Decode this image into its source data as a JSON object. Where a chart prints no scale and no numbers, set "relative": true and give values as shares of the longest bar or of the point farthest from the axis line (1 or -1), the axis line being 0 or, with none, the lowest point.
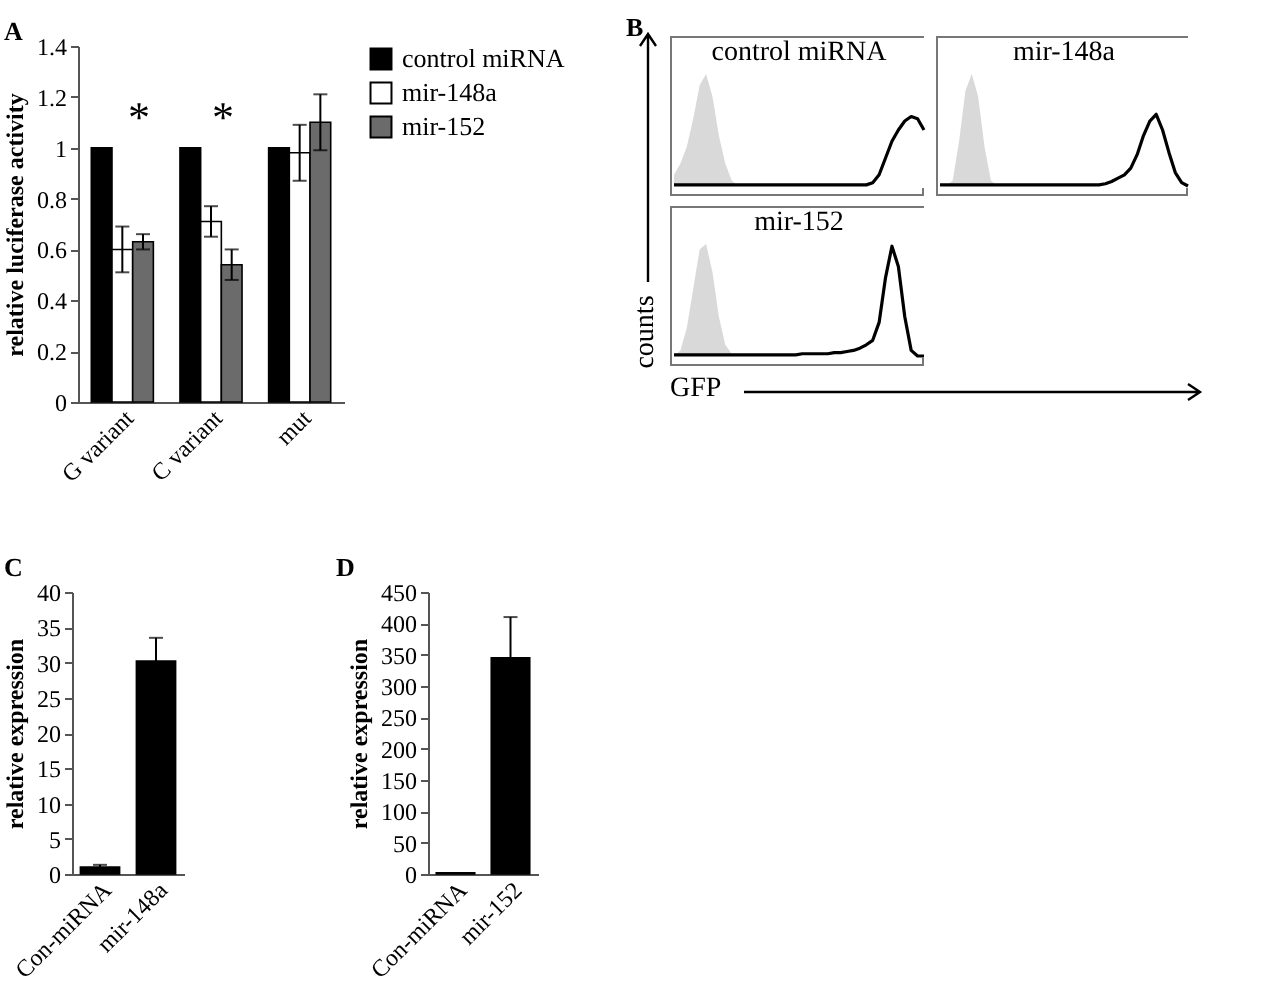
{
  "chart_data": [
    {
      "type": "bar",
      "annotations": [
        "A",
        "*",
        "*"
      ],
      "ylabel": "relative luciferase activity",
      "categories": [
        "G variant",
        "C variant",
        "mut"
      ],
      "series": [
        {
          "name": "control miRNA",
          "color": "#000000",
          "values": [
            1,
            1,
            1
          ]
        },
        {
          "name": "mir-148a",
          "color": "#ffffff",
          "values": [
            0.6,
            0.71,
            0.98
          ],
          "errors": [
            0.09,
            0.06,
            0.11
          ]
        },
        {
          "name": "mir-152",
          "color": "#6b6b6b",
          "values": [
            0.63,
            0.54,
            1.1
          ],
          "errors": [
            0.03,
            0.06,
            0.11
          ]
        }
      ],
      "ylim": [
        0,
        1.4
      ],
      "yticks": [
        0,
        0.2,
        0.4,
        0.6,
        0.8,
        1,
        1.2,
        1.4
      ],
      "legend": "right"
    },
    {
      "type": "line",
      "title": "control miRNA",
      "annotations": [
        "B"
      ],
      "relative": true,
      "categories": [
        null,
        null,
        null,
        null,
        null,
        null,
        null,
        null,
        null,
        null,
        null,
        null,
        null,
        null,
        null,
        null,
        null,
        null,
        null,
        null,
        null,
        null,
        null,
        null,
        null,
        null,
        null,
        null,
        null,
        null,
        null,
        null,
        null,
        null,
        null,
        null,
        null,
        null,
        null,
        null
      ],
      "series": [
        {
          "type": "area",
          "color": "#d9d9d9",
          "values": [
            0.1,
            0.2,
            0.35,
            0.6,
            0.9,
            1,
            0.8,
            0.45,
            0.2,
            0.05,
            0,
            0,
            0,
            0,
            0,
            0,
            0,
            0,
            0,
            0,
            0,
            0,
            0,
            0,
            0,
            0,
            0,
            0,
            0,
            0,
            0,
            0,
            0,
            0,
            0,
            0,
            0,
            0,
            0,
            0
          ]
        },
        {
          "type": "line",
          "color": "#000000",
          "values": [
            0.01,
            0.01,
            0.01,
            0.01,
            0.01,
            0.01,
            0.01,
            0.01,
            0.01,
            0.01,
            0.01,
            0.01,
            0.01,
            0.01,
            0.01,
            0.01,
            0.01,
            0.01,
            0.01,
            0.01,
            0.01,
            0.01,
            0.01,
            0.01,
            0.01,
            0.01,
            0.01,
            0.01,
            0.01,
            0.01,
            0.01,
            0.03,
            0.1,
            0.25,
            0.4,
            0.5,
            0.58,
            0.62,
            0.6,
            0.5
          ]
        }
      ]
    },
    {
      "type": "line",
      "title": "mir-148a",
      "relative": true,
      "categories": [
        null,
        null,
        null,
        null,
        null,
        null,
        null,
        null,
        null,
        null,
        null,
        null,
        null,
        null,
        null,
        null,
        null,
        null,
        null,
        null,
        null,
        null,
        null,
        null,
        null,
        null,
        null,
        null,
        null,
        null,
        null,
        null,
        null,
        null,
        null,
        null,
        null,
        null,
        null,
        null
      ],
      "series": [
        {
          "type": "area",
          "color": "#d9d9d9",
          "values": [
            0,
            0,
            0.05,
            0.4,
            0.85,
            1,
            0.8,
            0.35,
            0.05,
            0,
            0,
            0,
            0,
            0,
            0,
            0,
            0,
            0,
            0,
            0,
            0,
            0,
            0,
            0,
            0,
            0,
            0,
            0,
            0,
            0,
            0,
            0,
            0,
            0,
            0,
            0,
            0,
            0,
            0,
            0
          ]
        },
        {
          "type": "line",
          "color": "#000000",
          "values": [
            0.01,
            0.01,
            0.01,
            0.01,
            0.01,
            0.01,
            0.01,
            0.01,
            0.01,
            0.01,
            0.01,
            0.01,
            0.01,
            0.01,
            0.01,
            0.01,
            0.01,
            0.01,
            0.01,
            0.01,
            0.01,
            0.01,
            0.01,
            0.01,
            0.01,
            0.01,
            0.02,
            0.04,
            0.07,
            0.1,
            0.16,
            0.28,
            0.45,
            0.58,
            0.64,
            0.5,
            0.3,
            0.12,
            0.03,
            0
          ]
        }
      ]
    },
    {
      "type": "line",
      "title": "mir-152",
      "xlabel": "GFP",
      "ylabel": "counts",
      "relative": true,
      "categories": [
        null,
        null,
        null,
        null,
        null,
        null,
        null,
        null,
        null,
        null,
        null,
        null,
        null,
        null,
        null,
        null,
        null,
        null,
        null,
        null,
        null,
        null,
        null,
        null,
        null,
        null,
        null,
        null,
        null,
        null,
        null,
        null,
        null,
        null,
        null,
        null,
        null,
        null,
        null,
        null
      ],
      "series": [
        {
          "type": "area",
          "color": "#d9d9d9",
          "values": [
            0,
            0.05,
            0.25,
            0.6,
            0.95,
            1,
            0.75,
            0.35,
            0.1,
            0.02,
            0,
            0,
            0,
            0,
            0,
            0,
            0,
            0,
            0,
            0,
            0,
            0,
            0,
            0,
            0,
            0,
            0,
            0,
            0,
            0,
            0,
            0,
            0,
            0,
            0,
            0,
            0,
            0,
            0,
            0
          ]
        },
        {
          "type": "line",
          "color": "#000000",
          "values": [
            0.01,
            0.01,
            0.01,
            0.01,
            0.01,
            0.01,
            0.01,
            0.01,
            0.01,
            0.01,
            0.01,
            0.01,
            0.01,
            0.01,
            0.01,
            0.01,
            0.01,
            0.01,
            0.01,
            0.01,
            0.02,
            0.02,
            0.02,
            0.02,
            0.02,
            0.03,
            0.03,
            0.04,
            0.05,
            0.07,
            0.1,
            0.14,
            0.3,
            0.7,
            0.98,
            0.8,
            0.35,
            0.05,
            0,
            0
          ]
        }
      ]
    },
    {
      "type": "bar",
      "annotations": [
        "C"
      ],
      "ylabel": "relative expression",
      "categories": [
        "Con-miRNA",
        "mir-148a"
      ],
      "values": [
        1,
        30.2
      ],
      "errors": [
        0.3,
        3.3
      ],
      "color": "#000000",
      "ylim": [
        0,
        40
      ],
      "yticks": [
        0,
        5,
        10,
        15,
        20,
        25,
        30,
        35,
        40
      ]
    },
    {
      "type": "bar",
      "annotations": [
        "D"
      ],
      "ylabel": "relative expression",
      "categories": [
        "Con-miRNA",
        "mir-152"
      ],
      "values": [
        2,
        345
      ],
      "errors": [
        null,
        65
      ],
      "color": "#000000",
      "ylim": [
        0,
        450
      ],
      "yticks": [
        0,
        50,
        100,
        150,
        200,
        250,
        300,
        350,
        400,
        450
      ]
    }
  ]
}
